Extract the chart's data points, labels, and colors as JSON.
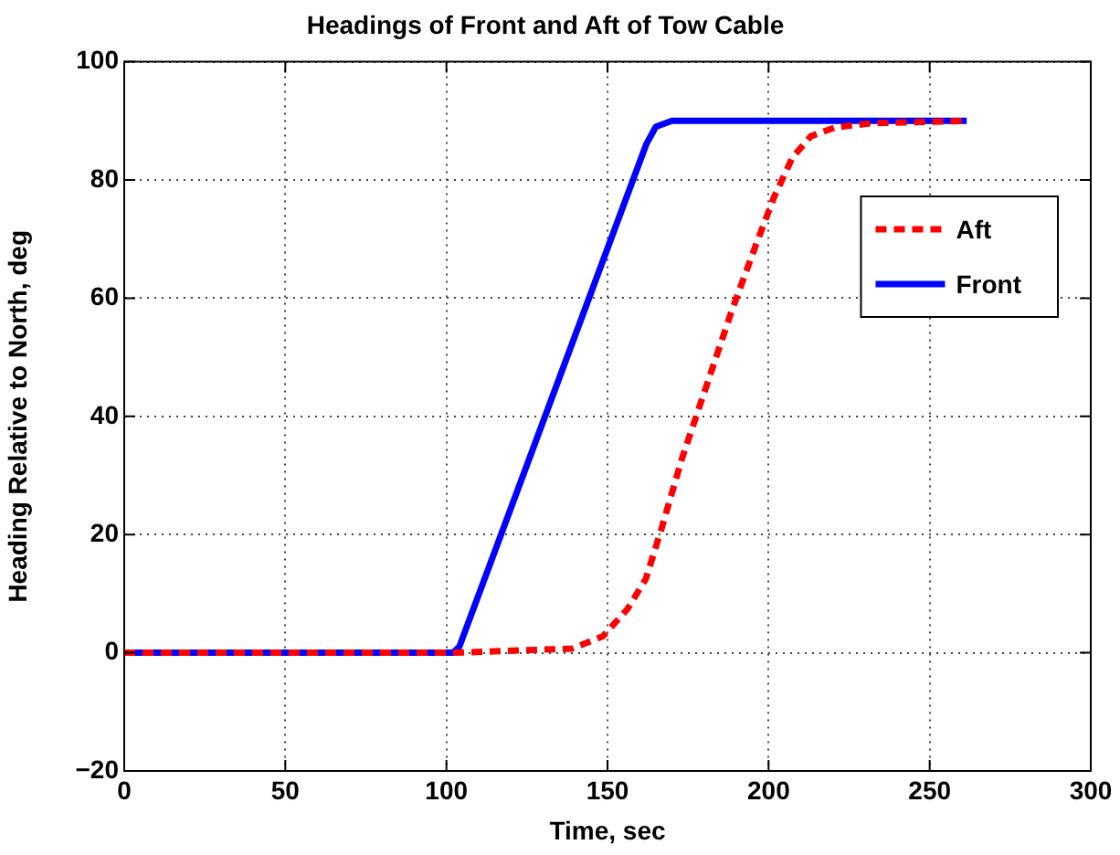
{
  "chart_data": {
    "type": "line",
    "title": "Headings of Front and Aft of Tow Cable",
    "xlabel": "Time, sec",
    "ylabel": "Heading Relative to North, deg",
    "xlim": [
      0,
      300
    ],
    "xticks": [
      0,
      50,
      100,
      150,
      200,
      250,
      300
    ],
    "ylim": [
      -20,
      100
    ],
    "yticks": [
      -20,
      0,
      20,
      40,
      60,
      80,
      100
    ],
    "grid": true,
    "legend": "right",
    "marker": "none",
    "series": [
      {
        "name": "Aft",
        "color": "#ff0000",
        "line_style": "dashed",
        "x": [
          0,
          102,
          139,
          148.6,
          156.2,
          161.9,
          166.6,
          173.2,
          180.8,
          188.4,
          196,
          201.7,
          207.4,
          213.1,
          220.7,
          232,
          261.5
        ],
        "values": [
          0,
          0,
          0.7,
          2.8,
          7.4,
          12.5,
          20.7,
          33,
          45.3,
          57.6,
          68.9,
          77.1,
          83.8,
          87.4,
          88.9,
          89.6,
          90
        ]
      },
      {
        "name": "Front",
        "color": "#0000ff",
        "line_style": "solid",
        "x": [
          0,
          102,
          104,
          162,
          165,
          170,
          261.5
        ],
        "values": [
          0,
          0,
          1,
          86,
          89,
          90,
          90
        ]
      }
    ]
  }
}
